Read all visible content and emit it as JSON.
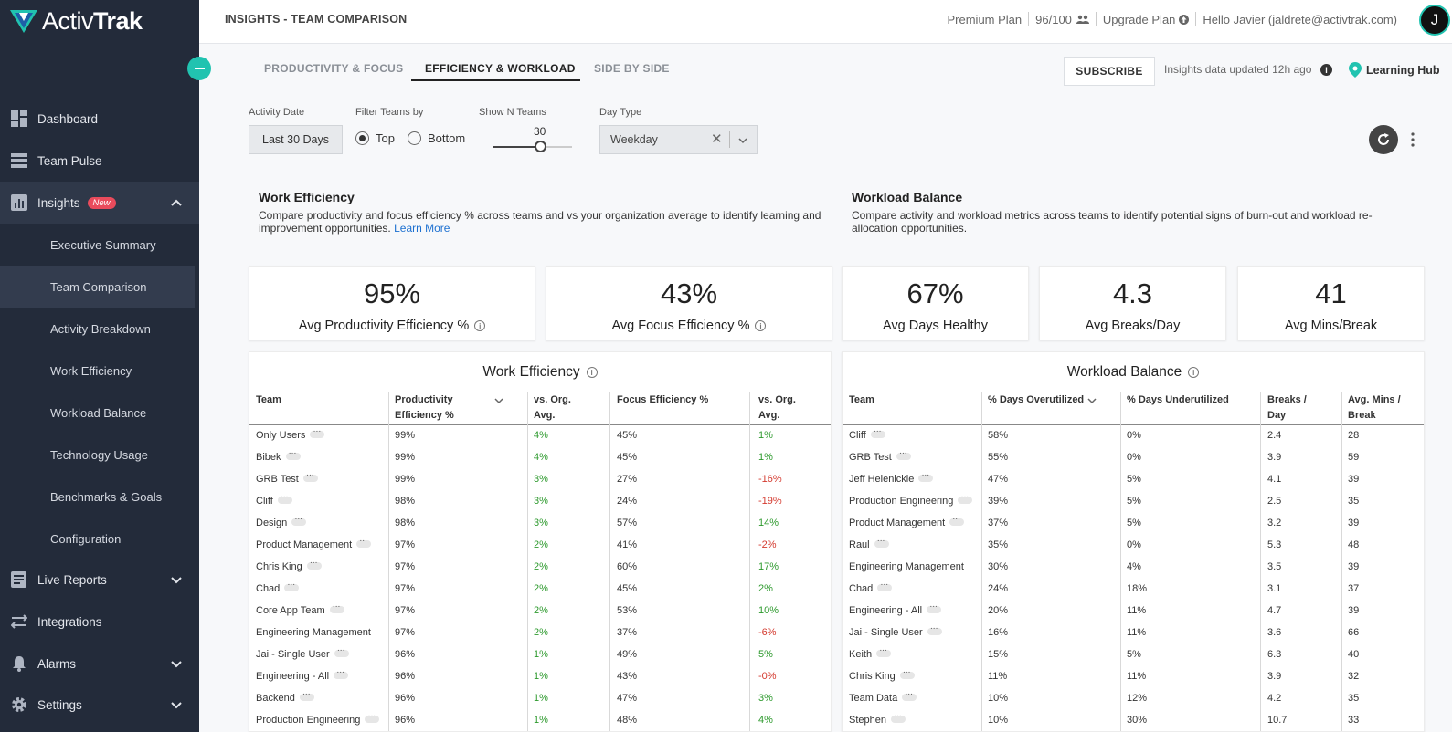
{
  "brand": {
    "name_light": "Activ",
    "name_bold": "Trak",
    "accent": "#21c3b0",
    "sidebar_bg": "#232b3a"
  },
  "sidebar": {
    "items": [
      {
        "label": "Dashboard",
        "icon": "dashboard-icon"
      },
      {
        "label": "Team Pulse",
        "icon": "team-pulse-icon"
      },
      {
        "label": "Insights",
        "icon": "insights-icon",
        "badge": "New",
        "expanded": true
      },
      {
        "label": "Live Reports",
        "icon": "live-reports-icon"
      },
      {
        "label": "Integrations",
        "icon": "integrations-icon"
      },
      {
        "label": "Alarms",
        "icon": "bell-icon"
      },
      {
        "label": "Settings",
        "icon": "gear-icon"
      }
    ],
    "insights_sub": [
      "Executive Summary",
      "Team Comparison",
      "Activity Breakdown",
      "Work Efficiency",
      "Workload Balance",
      "Technology Usage",
      "Benchmarks & Goals",
      "Configuration"
    ]
  },
  "topbar": {
    "title": "INSIGHTS - TEAM COMPARISON",
    "plan": "Premium Plan",
    "seats": "96/100",
    "upgrade": "Upgrade Plan",
    "greeting": "Hello Javier (jaldrete@activtrak.com)",
    "avatar_letter": "J"
  },
  "tabs": [
    "PRODUCTIVITY & FOCUS",
    "EFFICIENCY & WORKLOAD",
    "SIDE BY SIDE"
  ],
  "actions": {
    "subscribe": "SUBSCRIBE",
    "updated": "Insights data updated 12h ago",
    "learning_hub": "Learning Hub"
  },
  "filters": {
    "activity_date_label": "Activity Date",
    "activity_date_value": "Last 30 Days",
    "filter_teams_label": "Filter Teams by",
    "top": "Top",
    "bottom": "Bottom",
    "selected": "Top",
    "show_n_label": "Show N Teams",
    "show_n_value": "30",
    "show_n_fraction": 0.6,
    "day_type_label": "Day Type",
    "day_type_value": "Weekday"
  },
  "work_efficiency": {
    "title": "Work Efficiency",
    "desc": "Compare productivity and focus efficiency % across teams and vs your organization average to identify learning and improvement opportunities.",
    "learn_more": "Learn More"
  },
  "workload_balance": {
    "title": "Workload Balance",
    "desc": "Compare activity and workload metrics across teams to identify potential signs of burn-out and workload re-allocation opportunities."
  },
  "stats": [
    {
      "value": "95%",
      "label": "Avg Productivity Efficiency %"
    },
    {
      "value": "43%",
      "label": "Avg Focus Efficiency %"
    },
    {
      "value": "67%",
      "label": "Avg Days Healthy"
    },
    {
      "value": "4.3",
      "label": "Avg Breaks/Day"
    },
    {
      "value": "41",
      "label": "Avg Mins/Break"
    }
  ],
  "we_table": {
    "title": "Work Efficiency",
    "headers": [
      "Team",
      "Productivity Efficiency %",
      "vs. Org. Avg.",
      "Focus Efficiency %",
      "vs. Org. Avg."
    ],
    "rows": [
      [
        "Only Users",
        "99%",
        "4%",
        "45%",
        "1%"
      ],
      [
        "Bibek",
        "99%",
        "4%",
        "45%",
        "1%"
      ],
      [
        "GRB Test",
        "99%",
        "3%",
        "27%",
        "-16%"
      ],
      [
        "Cliff",
        "98%",
        "3%",
        "24%",
        "-19%"
      ],
      [
        "Design",
        "98%",
        "3%",
        "57%",
        "14%"
      ],
      [
        "Product Management",
        "97%",
        "2%",
        "41%",
        "-2%"
      ],
      [
        "Chris King",
        "97%",
        "2%",
        "60%",
        "17%"
      ],
      [
        "Chad",
        "97%",
        "2%",
        "45%",
        "2%"
      ],
      [
        "Core App Team",
        "97%",
        "2%",
        "53%",
        "10%"
      ],
      [
        "Engineering Management",
        "97%",
        "2%",
        "37%",
        "-6%"
      ],
      [
        "Jai - Single User",
        "96%",
        "1%",
        "49%",
        "5%"
      ],
      [
        "Engineering - All",
        "96%",
        "1%",
        "43%",
        "-0%"
      ],
      [
        "Backend",
        "96%",
        "1%",
        "47%",
        "3%"
      ],
      [
        "Production Engineering",
        "96%",
        "1%",
        "48%",
        "4%"
      ]
    ],
    "dots": [
      true,
      true,
      true,
      true,
      true,
      true,
      true,
      true,
      true,
      false,
      true,
      true,
      true,
      true
    ]
  },
  "wb_table": {
    "title": "Workload Balance",
    "headers": [
      "Team",
      "% Days Overutilized",
      "% Days Underutilized",
      "Breaks / Day",
      "Avg. Mins / Break"
    ],
    "rows": [
      [
        "Cliff",
        "58%",
        "0%",
        "2.4",
        "28"
      ],
      [
        "GRB Test",
        "55%",
        "0%",
        "3.9",
        "59"
      ],
      [
        "Jeff Heienickle",
        "47%",
        "5%",
        "4.1",
        "39"
      ],
      [
        "Production Engineering",
        "39%",
        "5%",
        "2.5",
        "35"
      ],
      [
        "Product Management",
        "37%",
        "5%",
        "3.2",
        "39"
      ],
      [
        "Raul",
        "35%",
        "0%",
        "5.3",
        "48"
      ],
      [
        "Engineering Management",
        "30%",
        "4%",
        "3.5",
        "39"
      ],
      [
        "Chad",
        "24%",
        "18%",
        "3.1",
        "37"
      ],
      [
        "Engineering - All",
        "20%",
        "11%",
        "4.7",
        "39"
      ],
      [
        "Jai - Single User",
        "16%",
        "11%",
        "3.6",
        "66"
      ],
      [
        "Keith",
        "15%",
        "5%",
        "6.3",
        "40"
      ],
      [
        "Chris King",
        "11%",
        "11%",
        "3.9",
        "32"
      ],
      [
        "Team Data",
        "10%",
        "12%",
        "4.2",
        "35"
      ],
      [
        "Stephen",
        "10%",
        "30%",
        "10.7",
        "33"
      ]
    ],
    "dots": [
      true,
      true,
      true,
      true,
      true,
      true,
      false,
      true,
      true,
      true,
      true,
      true,
      true,
      true
    ]
  }
}
